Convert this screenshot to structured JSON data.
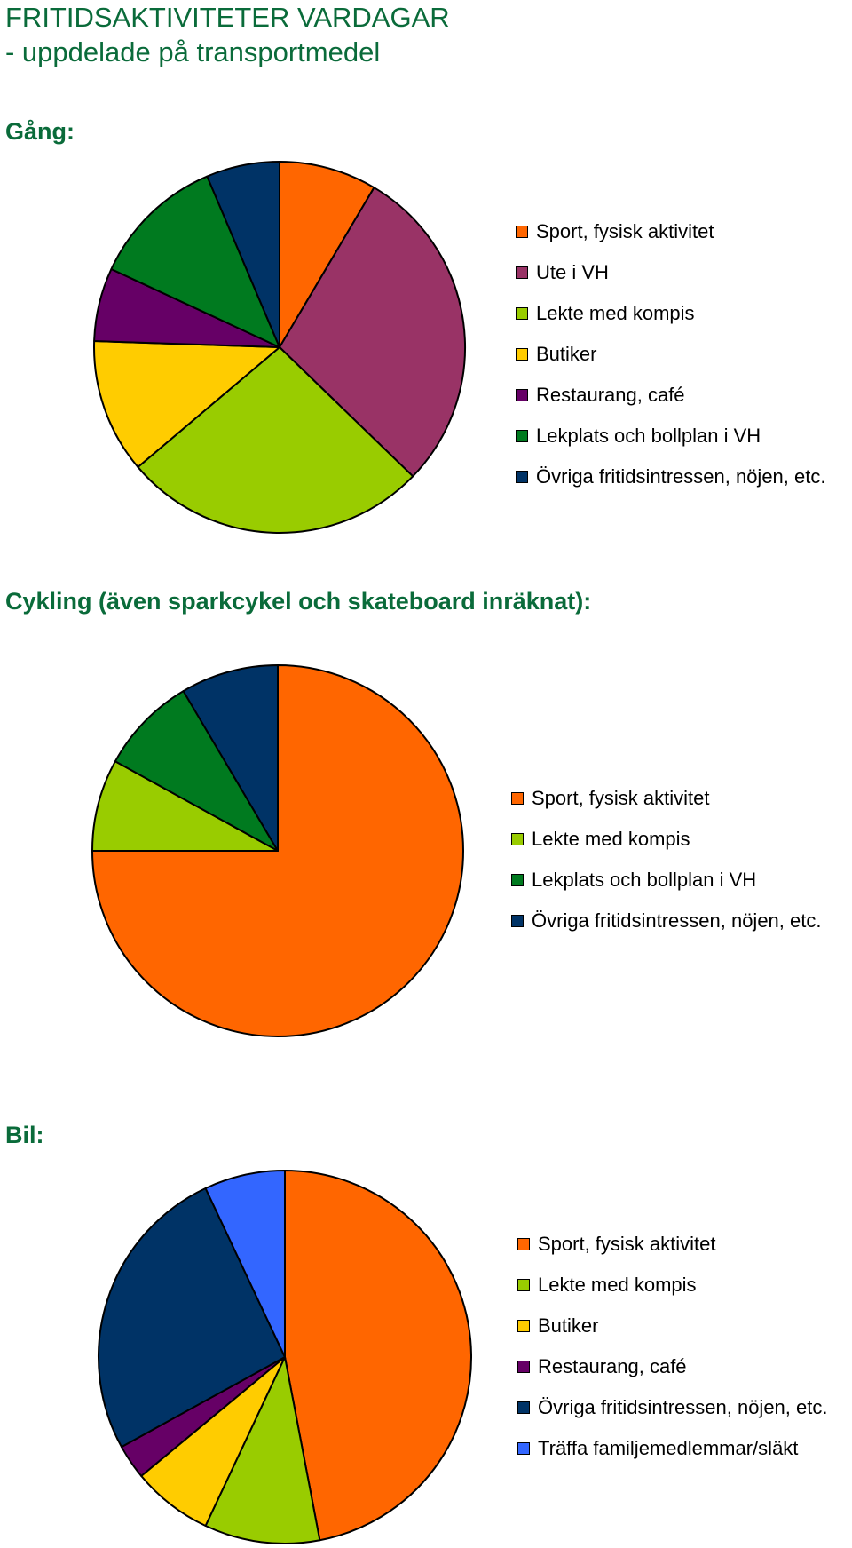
{
  "page": {
    "title_line1": "FRITIDSAKTIVITETER VARDAGAR",
    "title_line2": "- uppdelade på transportmedel"
  },
  "chart_data": [
    {
      "type": "pie",
      "title": "Gång:",
      "legend_position": "right",
      "categories": [
        "Sport, fysisk aktivitet",
        "Ute i VH",
        "Lekte med kompis",
        "Butiker",
        "Restaurang, café",
        "Lekplats och bollplan i VH",
        "Övriga fritidsintressen, nöjen, etc."
      ],
      "values": [
        8,
        27,
        25,
        11,
        6,
        11,
        6
      ],
      "colors": [
        "#ff6600",
        "#993366",
        "#99cc00",
        "#ffcc00",
        "#660066",
        "#007a1f",
        "#003366"
      ]
    },
    {
      "type": "pie",
      "title": "Cykling (även sparkcykel och skateboard inräknat):",
      "legend_position": "right",
      "categories": [
        "Sport, fysisk aktivitet",
        "Lekte med kompis",
        "Lekplats och bollplan i VH",
        "Övriga fritidsintressen, nöjen, etc."
      ],
      "values": [
        75,
        8,
        8.5,
        8.5
      ],
      "colors": [
        "#ff6600",
        "#99cc00",
        "#007a1f",
        "#003366"
      ]
    },
    {
      "type": "pie",
      "title": "Bil:",
      "legend_position": "right",
      "categories": [
        "Sport, fysisk aktivitet",
        "Lekte med kompis",
        "Butiker",
        "Restaurang, café",
        "Övriga fritidsintressen, nöjen, etc.",
        "Träffa familjemedlemmar/släkt"
      ],
      "values": [
        47,
        10,
        7,
        3,
        26,
        7
      ],
      "colors": [
        "#ff6600",
        "#99cc00",
        "#ffcc00",
        "#660066",
        "#003366",
        "#3366ff"
      ]
    }
  ]
}
